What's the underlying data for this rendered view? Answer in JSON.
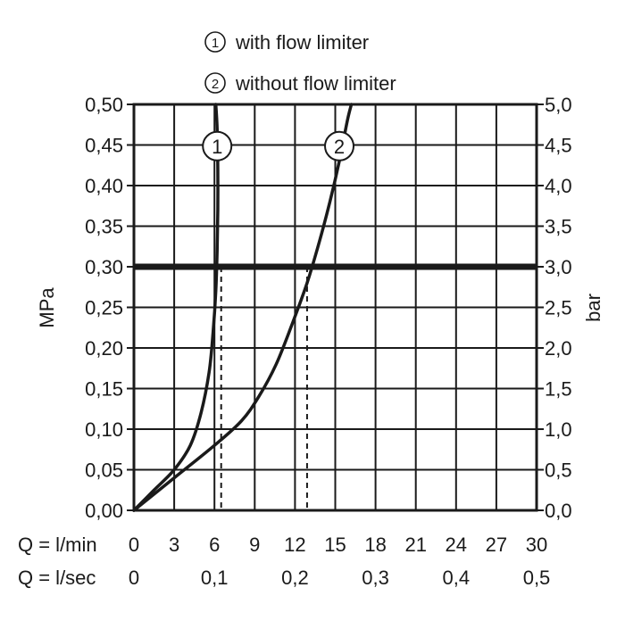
{
  "chart_data": {
    "type": "line",
    "title": "",
    "legend": {
      "placement": "top",
      "entries": [
        {
          "marker": "1",
          "label": "with flow limiter"
        },
        {
          "marker": "2",
          "label": "without flow limiter"
        }
      ]
    },
    "x_axis": {
      "label": "Q = l/min",
      "range": [
        0,
        30
      ],
      "ticks": [
        {
          "value": 0,
          "label": "0"
        },
        {
          "value": 3,
          "label": "3"
        },
        {
          "value": 6,
          "label": "6"
        },
        {
          "value": 9,
          "label": "9"
        },
        {
          "value": 12,
          "label": "12"
        },
        {
          "value": 15,
          "label": "15"
        },
        {
          "value": 18,
          "label": "18"
        },
        {
          "value": 21,
          "label": "21"
        },
        {
          "value": 24,
          "label": "24"
        },
        {
          "value": 27,
          "label": "27"
        },
        {
          "value": 30,
          "label": "30"
        }
      ]
    },
    "x2_axis": {
      "label": "Q = l/sec",
      "range": [
        0,
        0.5
      ],
      "ticks": [
        {
          "value": 0,
          "label": "0"
        },
        {
          "value": 0.1,
          "label": "0,1"
        },
        {
          "value": 0.2,
          "label": "0,2"
        },
        {
          "value": 0.3,
          "label": "0,3"
        },
        {
          "value": 0.4,
          "label": "0,4"
        },
        {
          "value": 0.5,
          "label": "0,5"
        }
      ]
    },
    "y_axis": {
      "label": "MPa",
      "range": [
        0,
        0.5
      ],
      "ticks": [
        {
          "value": 0,
          "label": "0,00"
        },
        {
          "value": 0.05,
          "label": "0,05"
        },
        {
          "value": 0.1,
          "label": "0,10"
        },
        {
          "value": 0.15,
          "label": "0,15"
        },
        {
          "value": 0.2,
          "label": "0,20"
        },
        {
          "value": 0.25,
          "label": "0,25"
        },
        {
          "value": 0.3,
          "label": "0,30"
        },
        {
          "value": 0.35,
          "label": "0,35"
        },
        {
          "value": 0.4,
          "label": "0,40"
        },
        {
          "value": 0.45,
          "label": "0,45"
        },
        {
          "value": 0.5,
          "label": "0,50"
        }
      ]
    },
    "y2_axis": {
      "label": "bar",
      "range": [
        0,
        5
      ],
      "ticks": [
        {
          "value": 0,
          "label": "0,0"
        },
        {
          "value": 0.5,
          "label": "0,5"
        },
        {
          "value": 1,
          "label": "1,0"
        },
        {
          "value": 1.5,
          "label": "1,5"
        },
        {
          "value": 2,
          "label": "2,0"
        },
        {
          "value": 2.5,
          "label": "2,5"
        },
        {
          "value": 3,
          "label": "3,0"
        },
        {
          "value": 3.5,
          "label": "3,5"
        },
        {
          "value": 4,
          "label": "4,0"
        },
        {
          "value": 4.5,
          "label": "4,5"
        },
        {
          "value": 5,
          "label": "5,0"
        }
      ]
    },
    "grid": true,
    "series": [
      {
        "marker": "1",
        "x": [
          0,
          1.5,
          3,
          4.2,
          5.0,
          5.6,
          5.9,
          6.1,
          6.2,
          6.25,
          6.25,
          6.2,
          6.1
        ],
        "y": [
          0,
          0.025,
          0.05,
          0.08,
          0.12,
          0.17,
          0.22,
          0.27,
          0.32,
          0.37,
          0.42,
          0.47,
          0.5
        ],
        "marker_at": {
          "x": 6.2,
          "y": 0.42
        }
      },
      {
        "marker": "2",
        "x": [
          0,
          3,
          6,
          8,
          9.3,
          10.6,
          11.8,
          12.9,
          13.8,
          14.6,
          15.3,
          15.9,
          16.2
        ],
        "y": [
          0,
          0.04,
          0.08,
          0.11,
          0.14,
          0.18,
          0.23,
          0.28,
          0.33,
          0.38,
          0.43,
          0.48,
          0.5
        ],
        "marker_at": {
          "x": 15.3,
          "y": 0.42
        }
      }
    ],
    "reference_line": {
      "y": 0.3
    },
    "dashed_markers": [
      {
        "x": 6.5,
        "y_top": 0.3
      },
      {
        "x": 12.9,
        "y_top": 0.3
      }
    ]
  },
  "colors": {
    "ink": "#1a1a1a",
    "grid": "#1a1a1a",
    "background": "#ffffff"
  }
}
